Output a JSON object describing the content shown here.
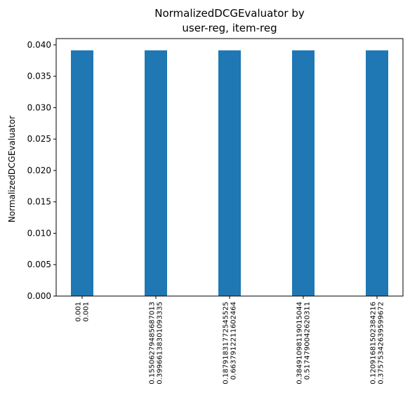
{
  "chart_data": {
    "type": "bar",
    "title": [
      "NormalizedDCGEvaluator by",
      "user-reg, item-reg"
    ],
    "xlabel": "",
    "ylabel": "NormalizedDCGEvaluator",
    "categories": [
      [
        "0.001",
        "0.001"
      ],
      [
        "0.15506279485687013",
        "0.39966138301093335"
      ],
      [
        "0.18791831772545525",
        "0.6637912211602464"
      ],
      [
        "0.38491098119015044",
        "0.5174790042620311"
      ],
      [
        "0.12091681502384216",
        "0.37575342639599672"
      ]
    ],
    "values": [
      0.03913,
      0.03913,
      0.03913,
      0.03913,
      0.03913
    ],
    "ylim": [
      0,
      0.041
    ],
    "yticks": [
      "0.000",
      "0.005",
      "0.010",
      "0.015",
      "0.020",
      "0.025",
      "0.030",
      "0.035",
      "0.040"
    ],
    "grid": false,
    "bar_color": "#1f77b4"
  }
}
